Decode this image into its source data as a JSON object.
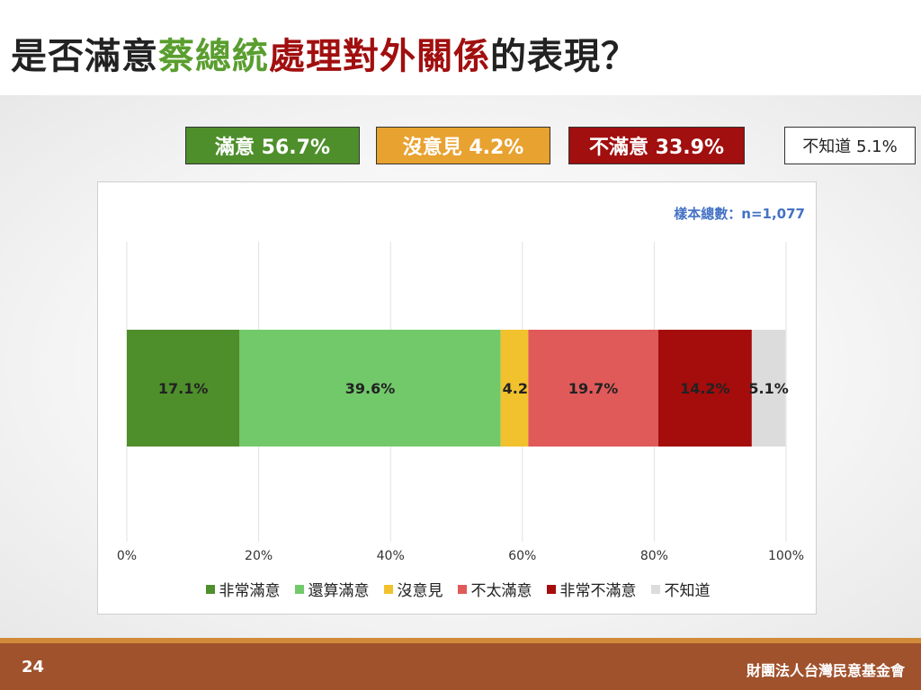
{
  "slide": {
    "title_parts": [
      {
        "text": "是否滿意",
        "color": "#222222"
      },
      {
        "text": "蔡總統",
        "color": "#5a9e2f"
      },
      {
        "text": "處理對外關係",
        "color": "#a10f0f"
      },
      {
        "text": "的表現？",
        "color": "#222222"
      }
    ],
    "page_number": "24",
    "organization": "財團法人台灣民意基金會"
  },
  "summary_boxes": [
    {
      "label": "滿意 56.7%",
      "bg": "#4e8f2b",
      "fg": "#ffffff"
    },
    {
      "label": "沒意見 4.2%",
      "bg": "#e8a230",
      "fg": "#ffffff"
    },
    {
      "label": "不滿意 33.9%",
      "bg": "#a10f0f",
      "fg": "#ffffff"
    },
    {
      "label": "不知道 5.1%",
      "bg": "#ffffff",
      "fg": "#222222"
    }
  ],
  "chart_data": {
    "type": "bar",
    "orientation": "horizontal",
    "stacked": true,
    "sample_note": "樣本總數：n=1,077",
    "x_ticks": [
      "0%",
      "20%",
      "40%",
      "60%",
      "80%",
      "100%"
    ],
    "xlim": [
      0,
      100
    ],
    "grid": true,
    "legend_position": "bottom",
    "series": [
      {
        "name": "非常滿意",
        "value": 17.1,
        "label": "17.1%",
        "color": "#4e8f2b"
      },
      {
        "name": "還算滿意",
        "value": 39.6,
        "label": "39.6%",
        "color": "#72c96a"
      },
      {
        "name": "沒意見",
        "value": 4.2,
        "label": "4.2%",
        "color": "#f2c12e"
      },
      {
        "name": "不太滿意",
        "value": 19.7,
        "label": "19.7%",
        "color": "#e05a5a"
      },
      {
        "name": "非常不滿意",
        "value": 14.2,
        "label": "14.2%",
        "color": "#a50c0c"
      },
      {
        "name": "不知道",
        "value": 5.1,
        "label": "5.1%",
        "color": "#dcdcdc"
      }
    ]
  }
}
